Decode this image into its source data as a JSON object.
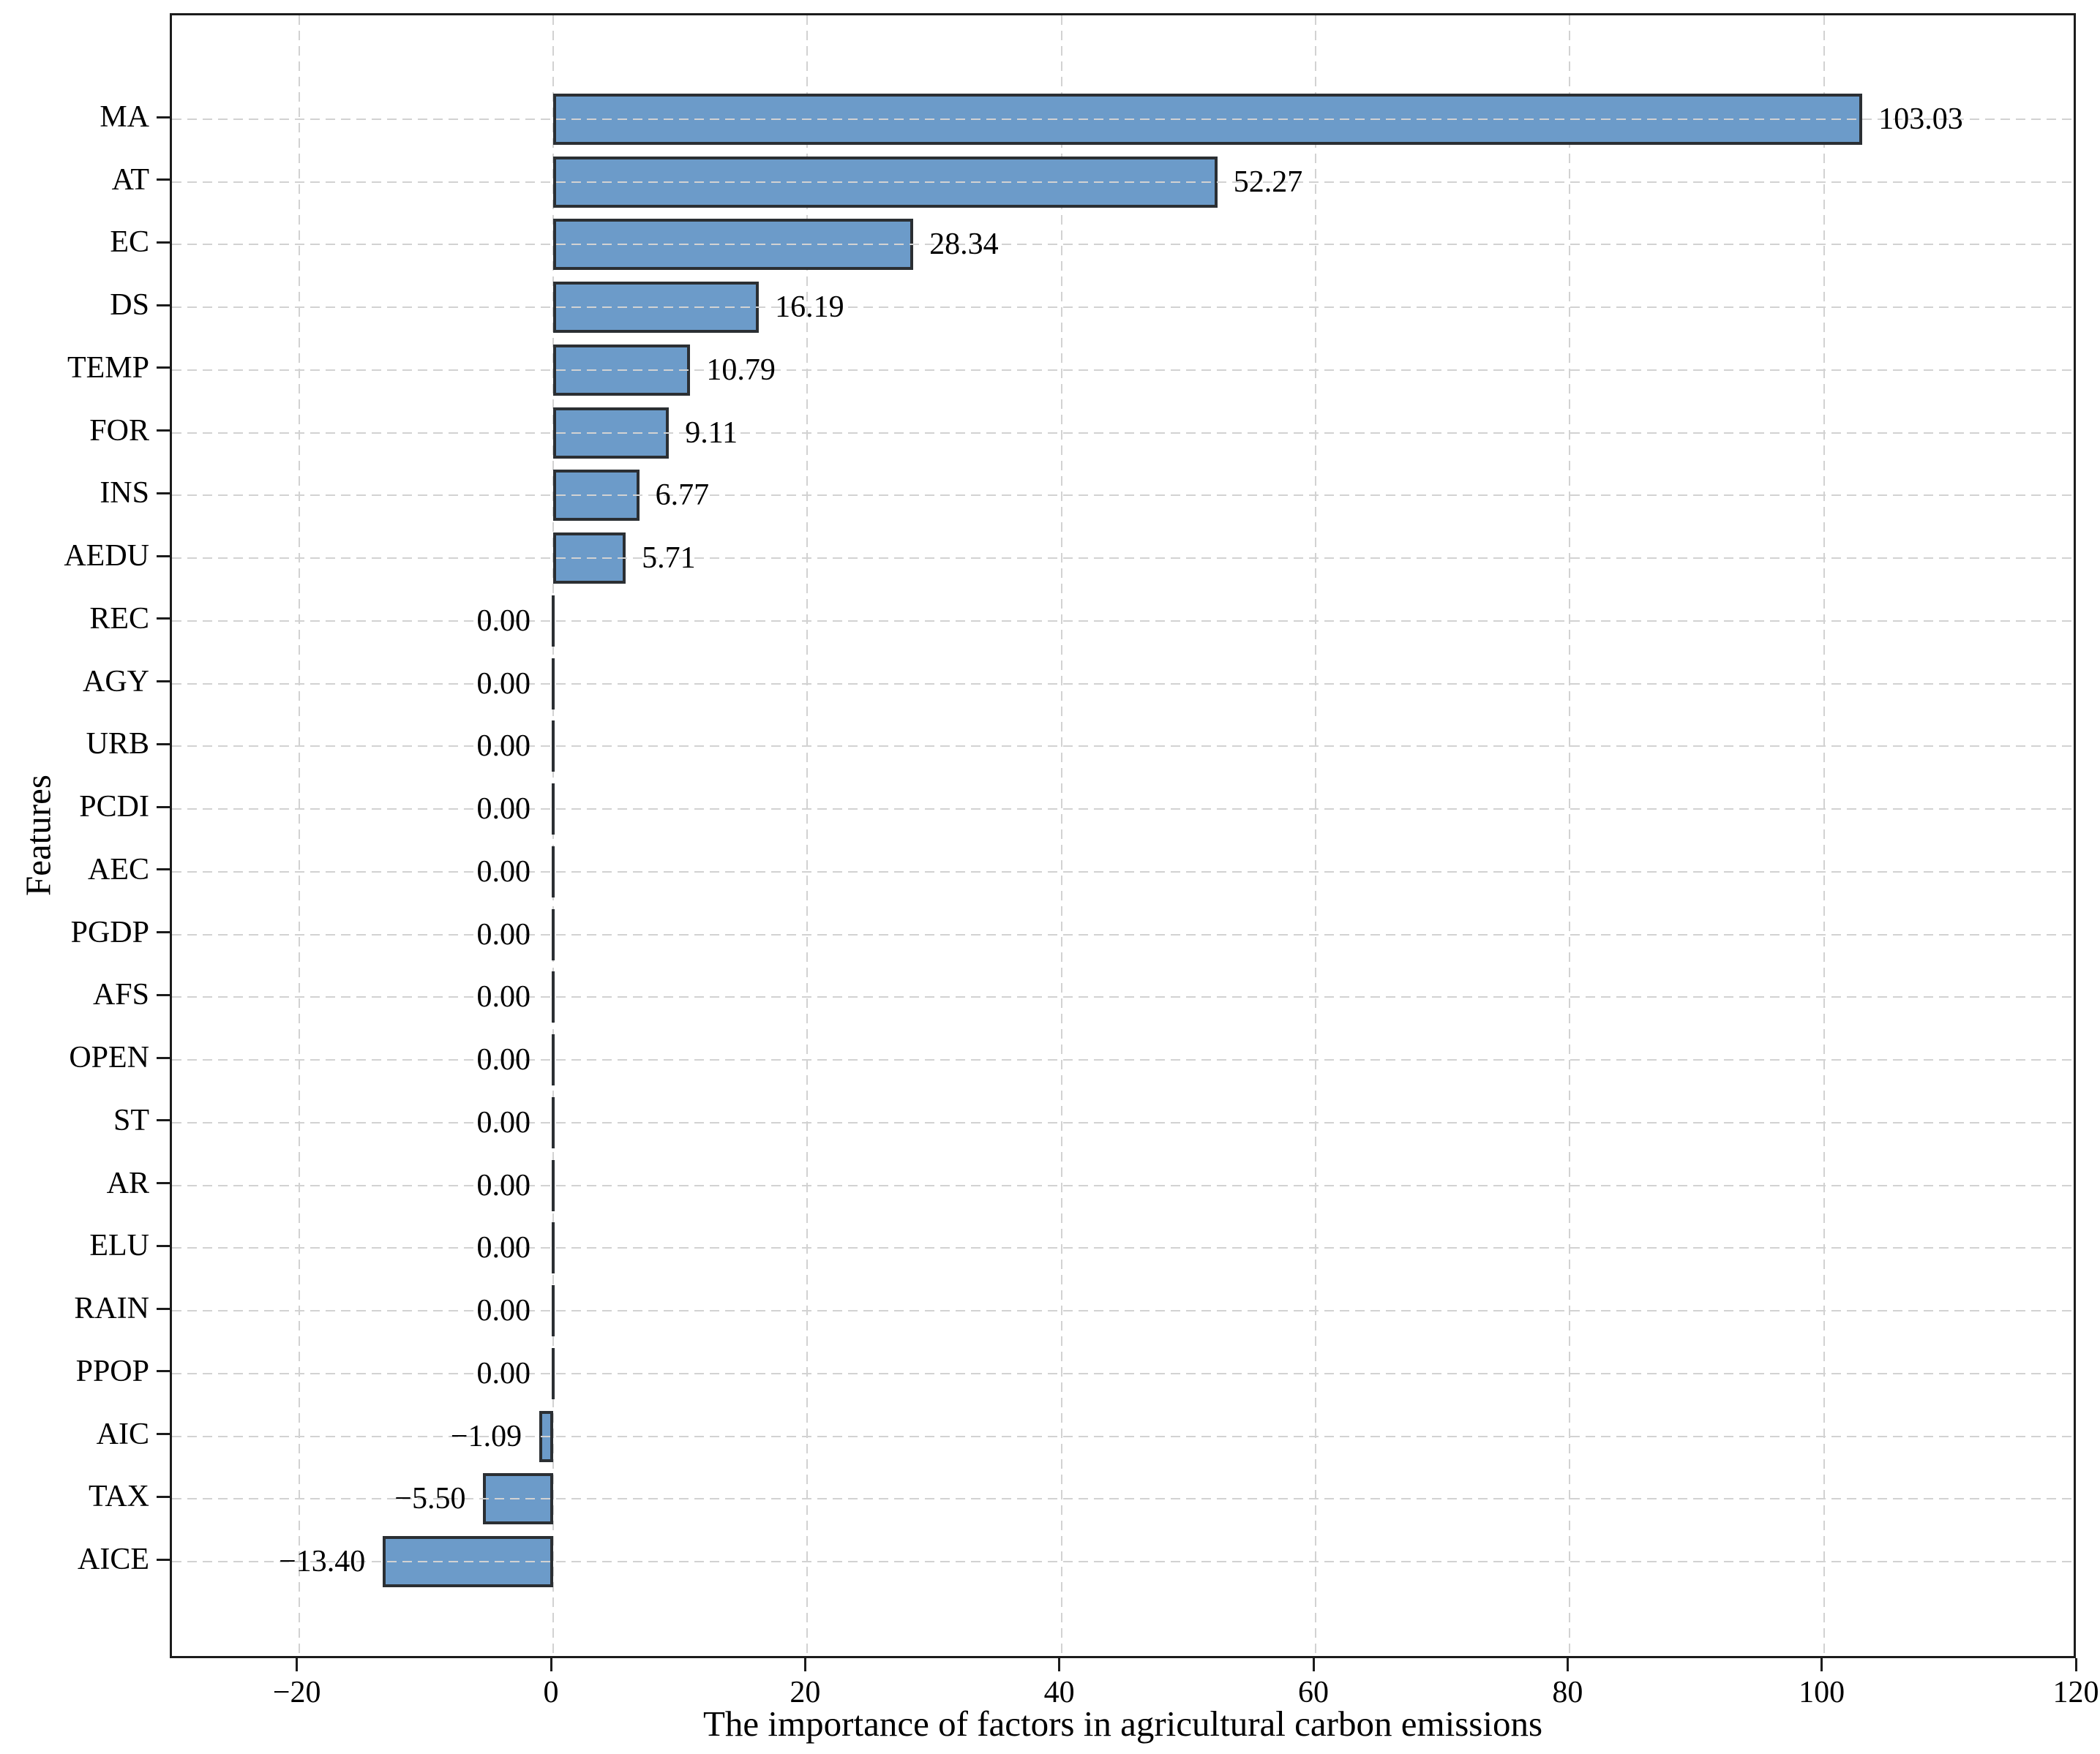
{
  "chart_data": {
    "type": "bar",
    "orientation": "horizontal",
    "title": "",
    "xlabel": "The importance of factors in agricultural carbon emissions",
    "ylabel": "Features",
    "categories": [
      "MA",
      "AT",
      "EC",
      "DS",
      "TEMP",
      "FOR",
      "INS",
      "AEDU",
      "REC",
      "AGY",
      "URB",
      "PCDI",
      "AEC",
      "PGDP",
      "AFS",
      "OPEN",
      "ST",
      "AR",
      "ELU",
      "RAIN",
      "PPOP",
      "AIC",
      "TAX",
      "AICE"
    ],
    "values": [
      103.03,
      52.27,
      28.34,
      16.19,
      10.79,
      9.11,
      6.77,
      5.71,
      0.0,
      0.0,
      0.0,
      0.0,
      0.0,
      0.0,
      0.0,
      0.0,
      0.0,
      0.0,
      0.0,
      0.0,
      0.0,
      -1.09,
      -5.5,
      -13.4
    ],
    "value_labels": [
      "103.03",
      "52.27",
      "28.34",
      "16.19",
      "10.79",
      "9.11",
      "6.77",
      "5.71",
      "0.00",
      "0.00",
      "0.00",
      "0.00",
      "0.00",
      "0.00",
      "0.00",
      "0.00",
      "0.00",
      "0.00",
      "0.00",
      "0.00",
      "0.00",
      "−1.09",
      "−5.50",
      "−13.40"
    ],
    "xlim": [
      -30,
      120
    ],
    "xticks": [
      -20,
      0,
      20,
      40,
      60,
      80,
      100,
      120
    ],
    "xtick_labels": [
      "−20",
      "0",
      "20",
      "40",
      "60",
      "80",
      "100",
      "120"
    ],
    "grid": {
      "style": "dashed",
      "horizontal": true,
      "vertical": true
    },
    "legend": "none",
    "colors": {
      "bar_fill": "#6C9BC9",
      "bar_edge": "#2B2F33",
      "gridline": "#D2D2D2",
      "spine": "#1C1C1C",
      "text": "#000000",
      "background": "#FFFFFF"
    }
  }
}
